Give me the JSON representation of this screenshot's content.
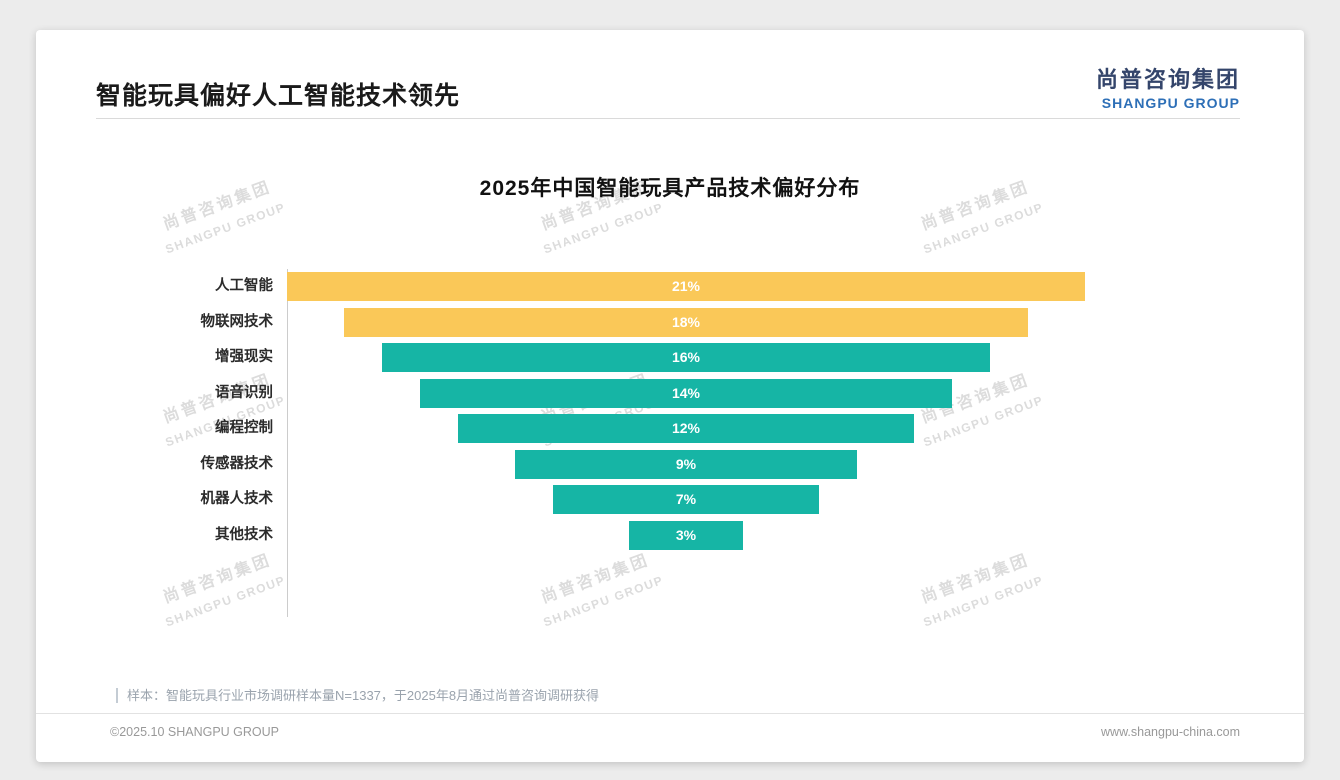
{
  "page": {
    "header": {
      "title": "智能玩具偏好人工智能技术领先",
      "logo": {
        "cn": "尚普咨询集团",
        "en": "SHANGPU GROUP"
      }
    },
    "watermark": {
      "cn": "尚普咨询集团",
      "en": "SHANGPU GROUP"
    },
    "footnote": "样本：智能玩具行业市场调研样本量N=1337，于2025年8月通过尚普咨询调研获得",
    "footer": {
      "left": "©2025.10 SHANGPU GROUP",
      "right": "www.shangpu-china.com"
    },
    "colors": {
      "highlight_bar": "#FAC858",
      "base_bar": "#16B5A5",
      "logo_cn": "#34456b",
      "logo_en": "#2d6fb7"
    }
  },
  "chart_data": {
    "type": "bar",
    "subtype": "centered-funnel-horizontal-bars",
    "title": "2025年中国智能玩具产品技术偏好分布",
    "categories": [
      "人工智能",
      "物联网技术",
      "增强现实",
      "语音识别",
      "编程控制",
      "传感器技术",
      "机器人技术",
      "其他技术"
    ],
    "values": [
      21,
      18,
      16,
      14,
      12,
      9,
      7,
      3
    ],
    "value_suffix": "%",
    "bar_colors": [
      "#FAC858",
      "#FAC858",
      "#16B5A5",
      "#16B5A5",
      "#16B5A5",
      "#16B5A5",
      "#16B5A5",
      "#16B5A5"
    ],
    "xlabel": "",
    "ylabel": "",
    "xlim": [
      0,
      21
    ],
    "grid": false,
    "legend": false,
    "data_labels": "inside-white-bold"
  }
}
